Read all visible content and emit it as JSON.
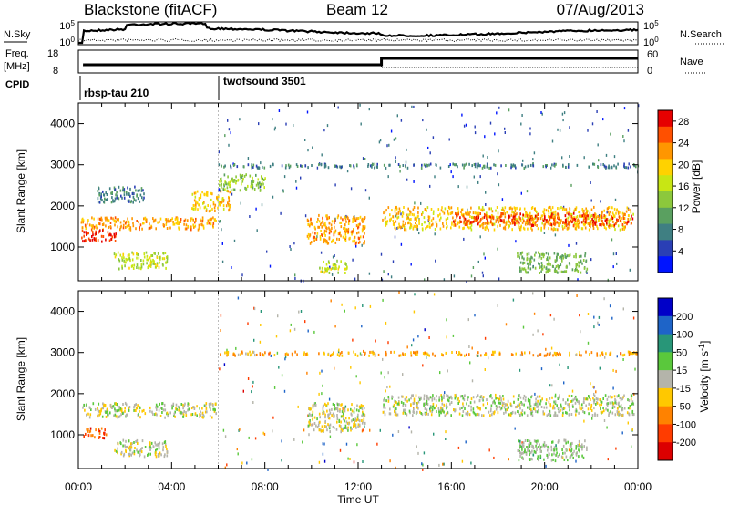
{
  "header": {
    "station": "Blackstone (fitACF)",
    "beam": "Beam 12",
    "date": "07/Aug/2013"
  },
  "noise_panel": {
    "left_label": "N.Sky",
    "right_label": "N.Search",
    "left_ticks": [
      "10^5",
      "10^0"
    ],
    "right_ticks": [
      "10^5",
      "10^0"
    ]
  },
  "freq_panel": {
    "left_label_line1": "Freq.",
    "left_label_line2": "[MHz]",
    "right_label": "Nave",
    "left_ticks": [
      "18",
      "8"
    ],
    "right_ticks": [
      "60",
      "0"
    ]
  },
  "cpid": {
    "label": "CPID",
    "segments": [
      {
        "name": "rbsp-tau 210",
        "start_hour": 0.0
      },
      {
        "name": "twofsound 3501",
        "start_hour": 6.0
      }
    ]
  },
  "x_axis": {
    "label": "Time UT",
    "ticks": [
      "00:00",
      "04:00",
      "08:00",
      "12:00",
      "16:00",
      "20:00",
      "00:00"
    ],
    "range_hours": [
      0,
      24
    ]
  },
  "chart_data": [
    {
      "type": "heatmap",
      "title": "",
      "ylabel": "Slant Range [km]",
      "xlabel": "",
      "ylim": [
        180,
        4500
      ],
      "yticks": [
        "1000",
        "2000",
        "3000",
        "4000"
      ],
      "colorbar": {
        "label": "Power [dB]",
        "ticks": [
          "4",
          "8",
          "12",
          "16",
          "20",
          "24",
          "28"
        ],
        "range": [
          0,
          30
        ],
        "colors": [
          "#0014ff",
          "#2a3fb5",
          "#3f7f82",
          "#5aa060",
          "#8cc83c",
          "#c8e614",
          "#ffd200",
          "#ff9600",
          "#ff5000",
          "#e60000"
        ]
      },
      "bands": [
        {
          "t0": 0.1,
          "t1": 5.9,
          "r0": 1450,
          "r1": 1750,
          "value": 22
        },
        {
          "t0": 0.1,
          "t1": 1.6,
          "r0": 1150,
          "r1": 1450,
          "value": 27
        },
        {
          "t0": 1.5,
          "t1": 3.8,
          "r0": 500,
          "r1": 900,
          "value": 16
        },
        {
          "t0": 0.8,
          "t1": 2.8,
          "r0": 2100,
          "r1": 2500,
          "value": 8
        },
        {
          "t0": 4.8,
          "t1": 6.5,
          "r0": 1900,
          "r1": 2400,
          "value": 20
        },
        {
          "t0": 6.0,
          "t1": 8.0,
          "r0": 2400,
          "r1": 2800,
          "value": 14
        },
        {
          "t0": 9.8,
          "t1": 12.3,
          "r0": 1100,
          "r1": 1800,
          "value": 22
        },
        {
          "t0": 10.3,
          "t1": 11.5,
          "r0": 400,
          "r1": 700,
          "value": 16
        },
        {
          "t0": 13.0,
          "t1": 23.8,
          "r0": 1450,
          "r1": 2000,
          "value": 20
        },
        {
          "t0": 16.0,
          "t1": 23.8,
          "r0": 1550,
          "r1": 1850,
          "value": 26
        },
        {
          "t0": 18.8,
          "t1": 21.8,
          "r0": 400,
          "r1": 900,
          "value": 12
        },
        {
          "t0": 6.0,
          "t1": 24.0,
          "r0": 2950,
          "r1": 3050,
          "value": 8
        }
      ]
    },
    {
      "type": "heatmap",
      "title": "",
      "ylabel": "Slant Range [km]",
      "xlabel": "",
      "ylim": [
        180,
        4500
      ],
      "yticks": [
        "1000",
        "2000",
        "3000",
        "4000"
      ],
      "colorbar": {
        "label": "Velocity [m s^-1]",
        "ticks": [
          "200",
          "100",
          "50",
          "15",
          "-15",
          "-50",
          "-100",
          "-200"
        ],
        "range": [
          -250,
          250
        ],
        "colors": [
          "#0000c8",
          "#1e64c8",
          "#289678",
          "#5ac83c",
          "#b4b4aa",
          "#ffc800",
          "#ff8200",
          "#ff3c00",
          "#dc0000"
        ]
      },
      "bands": [
        {
          "t0": 0.1,
          "t1": 5.9,
          "r0": 1450,
          "r1": 1800,
          "value": 0
        },
        {
          "t0": 1.5,
          "t1": 3.8,
          "r0": 500,
          "r1": 900,
          "value": 0
        },
        {
          "t0": 0.2,
          "t1": 1.2,
          "r0": 950,
          "r1": 1200,
          "value": -150
        },
        {
          "t0": 9.8,
          "t1": 12.3,
          "r0": 1100,
          "r1": 1800,
          "value": -10
        },
        {
          "t0": 13.0,
          "t1": 23.8,
          "r0": 1500,
          "r1": 2000,
          "value": 5
        },
        {
          "t0": 18.8,
          "t1": 21.8,
          "r0": 400,
          "r1": 900,
          "value": 30
        },
        {
          "t0": 6.0,
          "t1": 24.0,
          "r0": 2950,
          "r1": 3050,
          "value": -80
        }
      ]
    }
  ]
}
